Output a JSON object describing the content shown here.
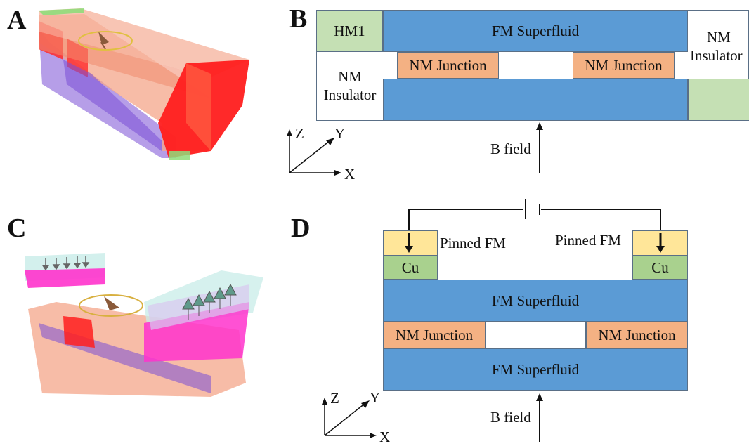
{
  "panels": {
    "a": "A",
    "b": "B",
    "c": "C",
    "d": "D"
  },
  "panel_b": {
    "hm1": "HM1",
    "fm_superfluid": "FM Superfluid",
    "nm_insulator_left": [
      "NM",
      "Insulator"
    ],
    "nm_insulator_right": [
      "NM",
      "Insulator"
    ],
    "nm_junction_1": "NM Junction",
    "nm_junction_2": "NM Junction",
    "b_field": "B field",
    "axes": {
      "z": "Z",
      "y": "Y",
      "x": "X"
    }
  },
  "panel_d": {
    "pinned_left": "Pinned FM",
    "pinned_right": "Pinned FM",
    "cu_left": "Cu",
    "cu_right": "Cu",
    "fm_superfluid_top": "FM Superfluid",
    "fm_superfluid_bottom": "FM Superfluid",
    "nm_junction_left": "NM Junction",
    "nm_junction_right": "NM Junction",
    "b_field": "B field",
    "axes": {
      "z": "Z",
      "y": "Y",
      "x": "X"
    }
  },
  "colors": {
    "fm_superfluid": "#5b9bd5",
    "nm_junction": "#f4b183",
    "hm": "#c5e0b4",
    "cu": "#a9d18e",
    "pinned_fm": "#ffe699",
    "render_red": "#ff2a2a",
    "render_magenta": "#ff33cc",
    "render_purple": "#7a4fd6",
    "render_salmon": "#f4a58a"
  }
}
